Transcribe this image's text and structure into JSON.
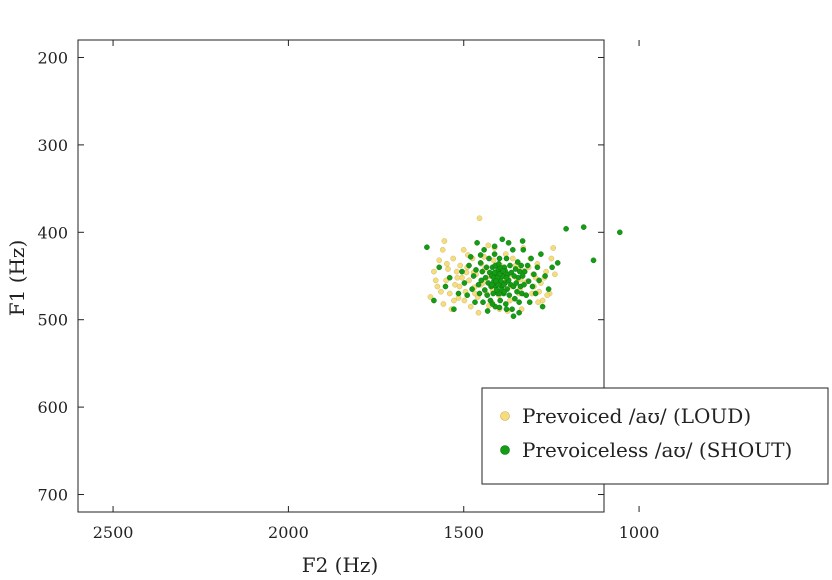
{
  "chart_data": {
    "type": "scatter",
    "title": "",
    "xlabel": "F2 (Hz)",
    "ylabel": "F1 (Hz)",
    "xlim": [
      2600,
      1100
    ],
    "ylim": [
      720,
      180
    ],
    "x_reversed": true,
    "y_reversed": true,
    "xticks": [
      2500,
      2000,
      1500,
      1000
    ],
    "yticks": [
      200,
      300,
      400,
      500,
      600,
      700
    ],
    "grid": false,
    "legend_position": "bottom-right",
    "series": [
      {
        "name": "Prevoiced /aʊ/ (LOUD)",
        "color": "#f5dc7f",
        "points": [
          [
            1595,
            474
          ],
          [
            1580,
            455
          ],
          [
            1565,
            468
          ],
          [
            1560,
            420
          ],
          [
            1555,
            410
          ],
          [
            1550,
            455
          ],
          [
            1545,
            442
          ],
          [
            1540,
            470
          ],
          [
            1535,
            488
          ],
          [
            1530,
            430
          ],
          [
            1525,
            460
          ],
          [
            1520,
            445
          ],
          [
            1515,
            475
          ],
          [
            1510,
            438
          ],
          [
            1505,
            452
          ],
          [
            1500,
            420
          ],
          [
            1495,
            468
          ],
          [
            1490,
            440
          ],
          [
            1485,
            455
          ],
          [
            1480,
            485
          ],
          [
            1475,
            430
          ],
          [
            1470,
            463
          ],
          [
            1465,
            448
          ],
          [
            1460,
            474
          ],
          [
            1455,
            384
          ],
          [
            1450,
            436
          ],
          [
            1445,
            458
          ],
          [
            1440,
            442
          ],
          [
            1435,
            470
          ],
          [
            1430,
            415
          ],
          [
            1425,
            450
          ],
          [
            1420,
            480
          ],
          [
            1415,
            432
          ],
          [
            1410,
            462
          ],
          [
            1405,
            447
          ],
          [
            1400,
            472
          ],
          [
            1395,
            438
          ],
          [
            1390,
            455
          ],
          [
            1385,
            468
          ],
          [
            1380,
            425
          ],
          [
            1375,
            490
          ],
          [
            1370,
            448
          ],
          [
            1365,
            462
          ],
          [
            1360,
            430
          ],
          [
            1355,
            476
          ],
          [
            1350,
            452
          ],
          [
            1345,
            442
          ],
          [
            1340,
            465
          ],
          [
            1335,
            488
          ],
          [
            1330,
            418
          ],
          [
            1325,
            458
          ],
          [
            1315,
            440
          ],
          [
            1305,
            470
          ],
          [
            1295,
            452
          ],
          [
            1285,
            468
          ],
          [
            1275,
            478
          ],
          [
            1265,
            445
          ],
          [
            1255,
            470
          ],
          [
            1245,
            418
          ],
          [
            1240,
            448
          ],
          [
            1585,
            445
          ],
          [
            1570,
            432
          ],
          [
            1558,
            482
          ],
          [
            1528,
            478
          ],
          [
            1512,
            462
          ],
          [
            1498,
            478
          ],
          [
            1488,
            426
          ],
          [
            1472,
            446
          ],
          [
            1458,
            492
          ],
          [
            1442,
            428
          ],
          [
            1428,
            484
          ],
          [
            1412,
            418
          ],
          [
            1398,
            488
          ],
          [
            1382,
            446
          ],
          [
            1368,
            478
          ],
          [
            1352,
            438
          ],
          [
            1338,
            454
          ],
          [
            1322,
            472
          ],
          [
            1310,
            430
          ],
          [
            1300,
            462
          ],
          [
            1290,
            436
          ],
          [
            1280,
            458
          ],
          [
            1262,
            472
          ],
          [
            1250,
            430
          ],
          [
            1575,
            462
          ],
          [
            1548,
            436
          ],
          [
            1518,
            452
          ],
          [
            1492,
            446
          ],
          [
            1468,
            470
          ],
          [
            1452,
            460
          ],
          [
            1436,
            452
          ],
          [
            1418,
            466
          ],
          [
            1402,
            458
          ],
          [
            1386,
            462
          ],
          [
            1372,
            454
          ],
          [
            1356,
            460
          ],
          [
            1342,
            470
          ],
          [
            1328,
            444
          ],
          [
            1318,
            456
          ],
          [
            1302,
            448
          ],
          [
            1288,
            480
          ],
          [
            1270,
            452
          ]
        ]
      },
      {
        "name": "Prevoiceless /aʊ/ (SHOUT)",
        "color": "#159c15",
        "points": [
          [
            1605,
            417
          ],
          [
            1585,
            478
          ],
          [
            1570,
            440
          ],
          [
            1552,
            462
          ],
          [
            1540,
            452
          ],
          [
            1528,
            488
          ],
          [
            1515,
            470
          ],
          [
            1505,
            445
          ],
          [
            1498,
            458
          ],
          [
            1490,
            472
          ],
          [
            1485,
            438
          ],
          [
            1480,
            428
          ],
          [
            1476,
            465
          ],
          [
            1472,
            450
          ],
          [
            1468,
            480
          ],
          [
            1465,
            443
          ],
          [
            1462,
            412
          ],
          [
            1458,
            460
          ],
          [
            1455,
            470
          ],
          [
            1452,
            435
          ],
          [
            1450,
            455
          ],
          [
            1447,
            445
          ],
          [
            1445,
            480
          ],
          [
            1442,
            420
          ],
          [
            1440,
            466
          ],
          [
            1438,
            452
          ],
          [
            1435,
            440
          ],
          [
            1433,
            472
          ],
          [
            1430,
            458
          ],
          [
            1428,
            430
          ],
          [
            1426,
            446
          ],
          [
            1424,
            478
          ],
          [
            1422,
            462
          ],
          [
            1420,
            450
          ],
          [
            1418,
            440
          ],
          [
            1416,
            470
          ],
          [
            1414,
            456
          ],
          [
            1412,
            425
          ],
          [
            1410,
            485
          ],
          [
            1408,
            462
          ],
          [
            1406,
            448
          ],
          [
            1404,
            438
          ],
          [
            1402,
            470
          ],
          [
            1400,
            455
          ],
          [
            1398,
            430
          ],
          [
            1396,
            478
          ],
          [
            1394,
            445
          ],
          [
            1392,
            462
          ],
          [
            1390,
            408
          ],
          [
            1388,
            450
          ],
          [
            1386,
            470
          ],
          [
            1384,
            440
          ],
          [
            1382,
            458
          ],
          [
            1380,
            482
          ],
          [
            1378,
            430
          ],
          [
            1376,
            465
          ],
          [
            1374,
            448
          ],
          [
            1372,
            455
          ],
          [
            1370,
            472
          ],
          [
            1368,
            438
          ],
          [
            1366,
            460
          ],
          [
            1364,
            446
          ],
          [
            1362,
            488
          ],
          [
            1360,
            420
          ],
          [
            1358,
            462
          ],
          [
            1356,
            450
          ],
          [
            1354,
            476
          ],
          [
            1352,
            442
          ],
          [
            1350,
            458
          ],
          [
            1348,
            468
          ],
          [
            1346,
            434
          ],
          [
            1344,
            452
          ],
          [
            1342,
            480
          ],
          [
            1340,
            445
          ],
          [
            1338,
            462
          ],
          [
            1336,
            438
          ],
          [
            1334,
            470
          ],
          [
            1332,
            450
          ],
          [
            1330,
            420
          ],
          [
            1328,
            460
          ],
          [
            1326,
            445
          ],
          [
            1322,
            472
          ],
          [
            1318,
            438
          ],
          [
            1315,
            456
          ],
          [
            1312,
            480
          ],
          [
            1308,
            430
          ],
          [
            1304,
            462
          ],
          [
            1300,
            448
          ],
          [
            1295,
            470
          ],
          [
            1290,
            440
          ],
          [
            1285,
            455
          ],
          [
            1280,
            425
          ],
          [
            1275,
            485
          ],
          [
            1268,
            450
          ],
          [
            1258,
            465
          ],
          [
            1248,
            440
          ],
          [
            1232,
            435
          ],
          [
            1208,
            396
          ],
          [
            1158,
            394
          ],
          [
            1130,
            432
          ],
          [
            1055,
            400
          ],
          [
            1342,
            492
          ],
          [
            1358,
            496
          ],
          [
            1378,
            488
          ],
          [
            1398,
            486
          ],
          [
            1418,
            482
          ],
          [
            1432,
            490
          ],
          [
            1372,
            412
          ],
          [
            1412,
            416
          ],
          [
            1452,
            426
          ],
          [
            1332,
            410
          ],
          [
            1398,
            470
          ],
          [
            1402,
            442
          ],
          [
            1394,
            456
          ],
          [
            1406,
            466
          ],
          [
            1410,
            438
          ],
          [
            1390,
            450
          ],
          [
            1386,
            460
          ],
          [
            1414,
            452
          ],
          [
            1382,
            444
          ],
          [
            1420,
            460
          ],
          [
            1378,
            452
          ],
          [
            1398,
            448
          ],
          [
            1402,
            460
          ],
          [
            1396,
            440
          ],
          [
            1404,
            452
          ],
          [
            1392,
            466
          ],
          [
            1408,
            456
          ],
          [
            1388,
            444
          ],
          [
            1412,
            446
          ],
          [
            1384,
            468
          ],
          [
            1400,
            436
          ]
        ]
      }
    ]
  }
}
